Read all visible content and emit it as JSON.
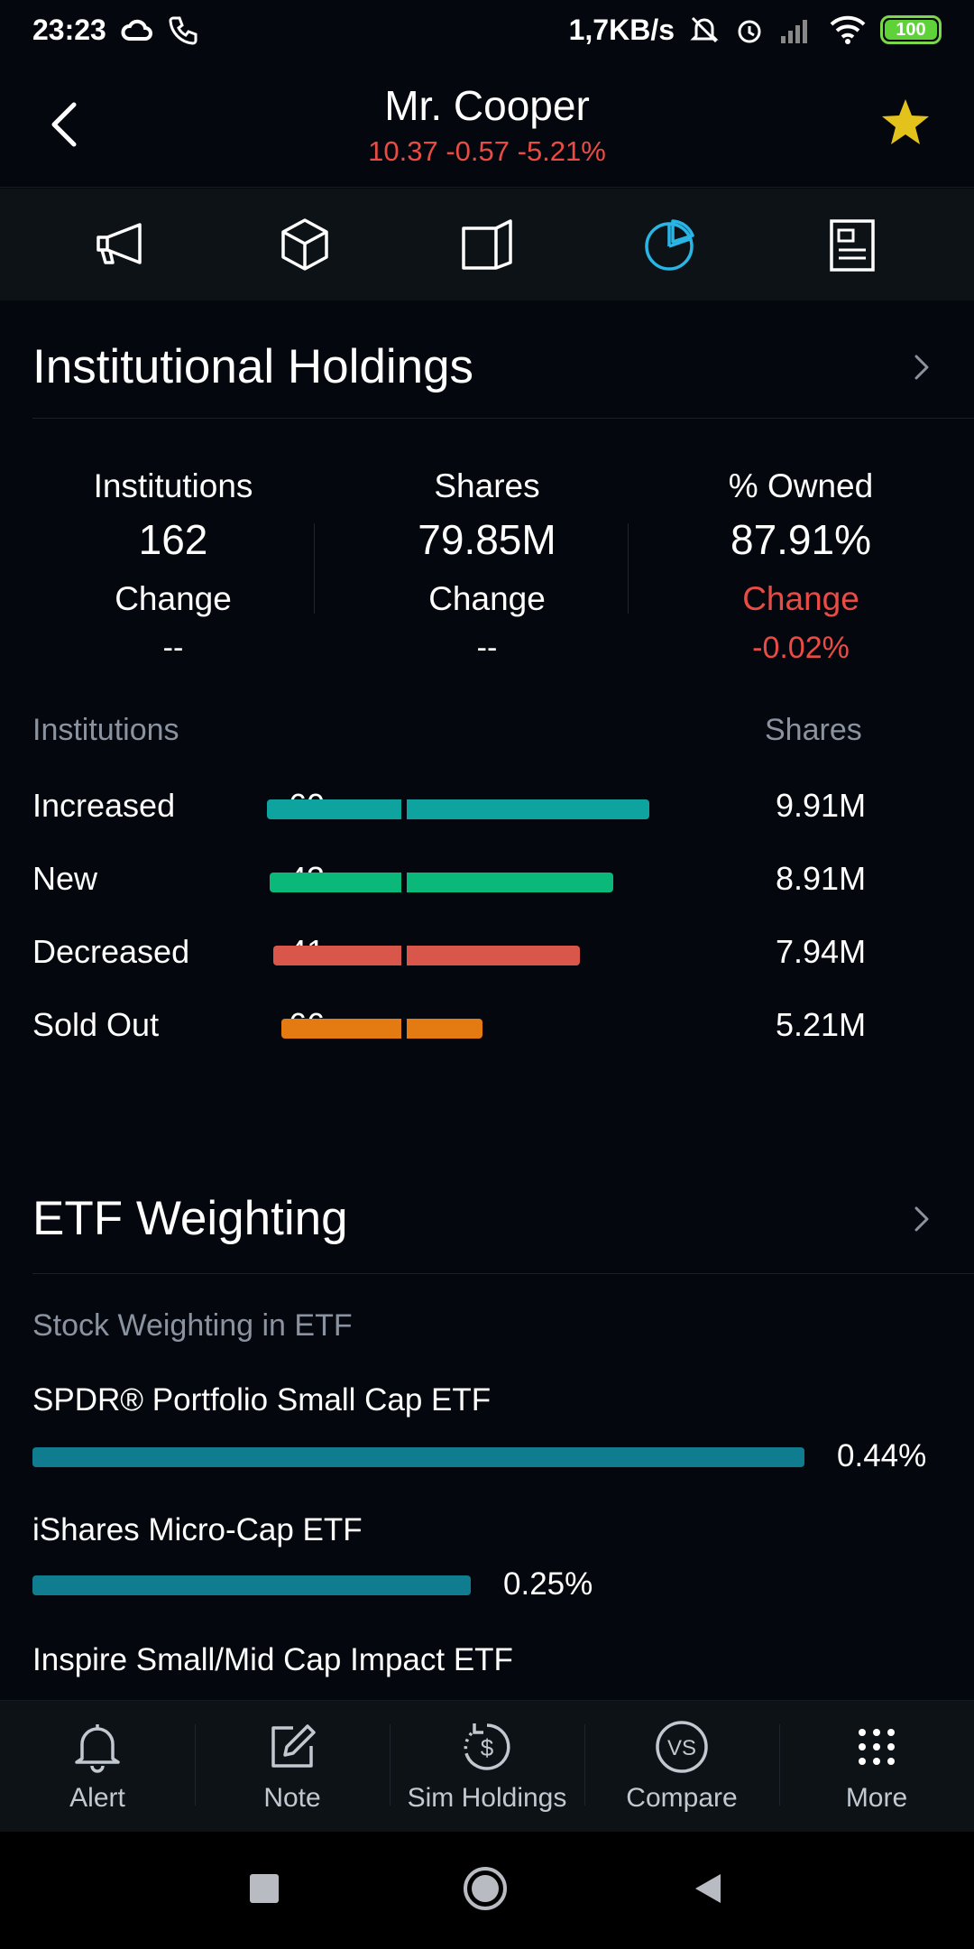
{
  "status_bar": {
    "time": "23:23",
    "net_speed": "1,7KB/s",
    "battery": "100"
  },
  "header": {
    "title": "Mr. Cooper",
    "quote": "10.37 -0.57 -5.21%"
  },
  "tabs": [
    {
      "icon": "megaphone-icon"
    },
    {
      "icon": "cube-icon"
    },
    {
      "icon": "book-icon"
    },
    {
      "icon": "pie-chart-icon",
      "active": true
    },
    {
      "icon": "news-icon"
    }
  ],
  "institutional": {
    "title": "Institutional Holdings",
    "stats": [
      {
        "label": "Institutions",
        "value": "162",
        "change_label": "Change",
        "change_value": "--"
      },
      {
        "label": "Shares",
        "value": "79.85M",
        "change_label": "Change",
        "change_value": "--"
      },
      {
        "label": "% Owned",
        "value": "87.91%",
        "change_label": "Change",
        "change_value": "-0.02%"
      }
    ],
    "col_institutions": "Institutions",
    "col_shares": "Shares",
    "rows": [
      {
        "label": "Increased",
        "count": "60",
        "shares": "9.91M",
        "color": "#0fa3a0",
        "bar_fraction": 1.0
      },
      {
        "label": "New",
        "count": "43",
        "shares": "8.91M",
        "color": "#0ab87a",
        "bar_fraction": 0.899
      },
      {
        "label": "Decreased",
        "count": "41",
        "shares": "7.94M",
        "color": "#d9564a",
        "bar_fraction": 0.801
      },
      {
        "label": "Sold Out",
        "count": "66",
        "shares": "5.21M",
        "color": "#e47a12",
        "bar_fraction": 0.526
      }
    ]
  },
  "etf": {
    "title": "ETF Weighting",
    "subtitle": "Stock Weighting in ETF",
    "items": [
      {
        "name": "SPDR® Portfolio Small Cap ETF",
        "value": "0.44%",
        "weight": 0.44
      },
      {
        "name": "iShares Micro-Cap ETF",
        "value": "0.25%",
        "weight": 0.25
      },
      {
        "name": "Inspire Small/Mid Cap Impact ETF",
        "value": "",
        "weight": null
      }
    ]
  },
  "toolbar": [
    {
      "label": "Alert",
      "icon": "bell-icon"
    },
    {
      "label": "Note",
      "icon": "edit-icon"
    },
    {
      "label": "Sim Holdings",
      "icon": "sim-holdings-icon"
    },
    {
      "label": "Compare",
      "icon": "compare-icon"
    },
    {
      "label": "More",
      "icon": "more-grid-icon"
    }
  ],
  "colors": {
    "accent": "#29b6e6",
    "negative": "#ea4b44",
    "star": "#e2c21b",
    "etf_bar": "#0f7d8f"
  }
}
